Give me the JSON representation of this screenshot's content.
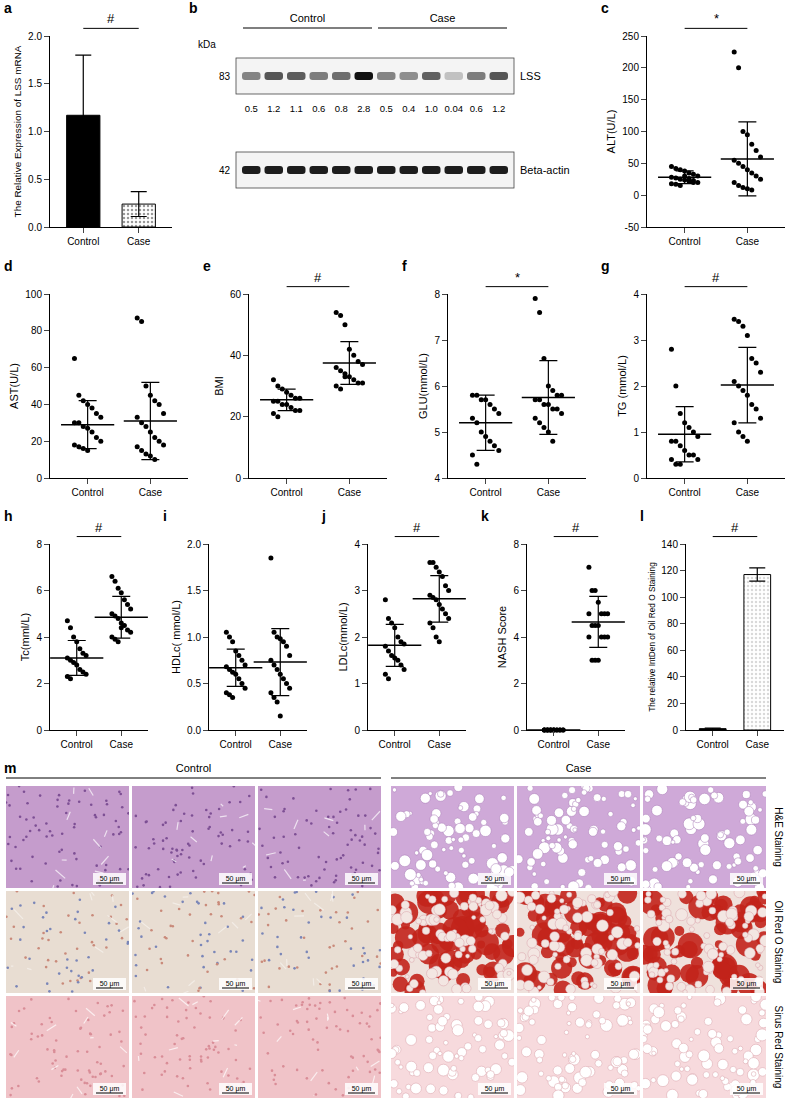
{
  "chart_data": [
    {
      "panel": "a",
      "type": "bar",
      "ylabel": "The Relative Expression of LSS mRNA",
      "categories": [
        "Control",
        "Case"
      ],
      "values": [
        1.17,
        0.24
      ],
      "errors": [
        0.63,
        0.13
      ],
      "colors": [
        "#000000",
        "#999999"
      ],
      "ylim": [
        0,
        2
      ],
      "yticks": [
        {
          "value": 0,
          "label": "0.0"
        },
        {
          "value": 0.5,
          "label": "0.5"
        },
        {
          "value": 1,
          "label": "1.0"
        },
        {
          "value": 1.5,
          "label": "1.5"
        },
        {
          "value": 2,
          "label": "2.0"
        }
      ],
      "significance": "#"
    },
    {
      "panel": "c",
      "type": "scatter",
      "ylabel": "ALT(U/L)",
      "categories": [
        "Control",
        "Case"
      ],
      "groups": [
        {
          "values": [
            45,
            42,
            40,
            38,
            35,
            33,
            30,
            28,
            27,
            25,
            24,
            22,
            20,
            20,
            18,
            17,
            15,
            30,
            26,
            23
          ],
          "mean": 28,
          "sd": 10
        },
        {
          "values": [
            225,
            200,
            100,
            95,
            80,
            70,
            60,
            55,
            50,
            45,
            40,
            35,
            30,
            25,
            20,
            15,
            12,
            10,
            8
          ],
          "mean": 57,
          "sd": 58
        }
      ],
      "ylim": [
        -50,
        250
      ],
      "yticks": [
        -50,
        0,
        50,
        100,
        150,
        200,
        250
      ],
      "significance": "*"
    },
    {
      "panel": "d",
      "type": "scatter",
      "ylabel": "AST(U/L)",
      "categories": [
        "Control",
        "Case"
      ],
      "groups": [
        {
          "values": [
            65,
            45,
            42,
            40,
            38,
            35,
            33,
            30,
            30,
            28,
            27,
            25,
            22,
            20,
            18,
            17,
            16,
            15
          ],
          "mean": 29,
          "sd": 13
        },
        {
          "values": [
            87,
            85,
            50,
            45,
            42,
            40,
            35,
            33,
            30,
            28,
            25,
            22,
            20,
            18,
            17,
            15,
            13,
            12,
            10
          ],
          "mean": 31,
          "sd": 21
        }
      ],
      "ylim": [
        0,
        100
      ],
      "yticks": [
        0,
        20,
        40,
        60,
        80,
        100
      ]
    },
    {
      "panel": "e",
      "type": "scatter",
      "ylabel": "BMI",
      "categories": [
        "Control",
        "Case"
      ],
      "groups": [
        {
          "values": [
            32,
            30,
            29,
            28,
            27,
            26,
            26,
            25,
            25,
            24,
            24,
            23,
            22,
            22,
            21,
            20
          ],
          "mean": 25.5,
          "sd": 3.5
        },
        {
          "values": [
            54,
            53,
            50,
            42,
            40,
            38,
            37,
            36,
            35,
            34,
            33,
            32,
            31,
            31,
            30,
            29,
            33
          ],
          "mean": 37.5,
          "sd": 7
        }
      ],
      "ylim": [
        0,
        60
      ],
      "yticks": [
        0,
        20,
        40,
        60
      ],
      "significance": "#"
    },
    {
      "panel": "f",
      "type": "scatter",
      "ylabel": "GLU(mmol/L)",
      "categories": [
        "Control",
        "Case"
      ],
      "groups": [
        {
          "values": [
            5.8,
            5.8,
            5.7,
            5.7,
            5.6,
            5.5,
            5.4,
            5.3,
            5.2,
            5.0,
            4.9,
            4.8,
            4.7,
            4.6,
            4.5,
            4.3
          ],
          "mean": 5.2,
          "sd": 0.6
        },
        {
          "values": [
            7.9,
            7.6,
            6.6,
            6.0,
            5.9,
            5.8,
            5.8,
            5.7,
            5.7,
            5.6,
            5.6,
            5.5,
            5.5,
            5.4,
            5.3,
            5.2,
            5.1,
            5.0,
            4.8
          ],
          "mean": 5.75,
          "sd": 0.8
        }
      ],
      "ylim": [
        4,
        8
      ],
      "yticks": [
        4,
        5,
        6,
        7,
        8
      ],
      "significance": "*"
    },
    {
      "panel": "g",
      "type": "scatter",
      "ylabel": "TG (mmol/L)",
      "categories": [
        "Control",
        "Case"
      ],
      "groups": [
        {
          "values": [
            2.8,
            2.0,
            1.4,
            1.2,
            1.1,
            1.0,
            0.9,
            0.8,
            0.8,
            0.7,
            0.6,
            0.5,
            0.5,
            0.4,
            0.4,
            0.3,
            0.3
          ],
          "mean": 0.95,
          "sd": 0.6
        },
        {
          "values": [
            3.45,
            3.4,
            3.3,
            3.1,
            2.6,
            2.5,
            2.3,
            2.1,
            2.0,
            1.9,
            1.8,
            1.6,
            1.5,
            1.3,
            1.2,
            1.0,
            0.9,
            0.8
          ],
          "mean": 2.02,
          "sd": 0.82
        }
      ],
      "ylim": [
        0,
        4
      ],
      "yticks": [
        0,
        1,
        2,
        3,
        4
      ],
      "significance": "#"
    },
    {
      "panel": "h",
      "type": "scatter",
      "ylabel": "Tc(mml/L)",
      "categories": [
        "Control",
        "Case"
      ],
      "groups": [
        {
          "values": [
            4.7,
            4.4,
            4.0,
            3.8,
            3.5,
            3.3,
            3.2,
            3.1,
            3.0,
            2.9,
            2.8,
            2.6,
            2.5,
            2.4,
            2.3,
            2.2
          ],
          "mean": 3.1,
          "sd": 0.75
        },
        {
          "values": [
            6.6,
            6.4,
            6.1,
            5.9,
            5.6,
            5.4,
            5.2,
            5.0,
            4.9,
            4.8,
            4.6,
            4.5,
            4.3,
            4.2,
            4.0,
            3.9,
            3.8,
            4.4
          ],
          "mean": 4.85,
          "sd": 0.9
        }
      ],
      "ylim": [
        0,
        8
      ],
      "yticks": [
        0,
        2,
        4,
        6,
        8
      ],
      "significance": "#"
    },
    {
      "panel": "i",
      "type": "scatter",
      "ylabel": "HDLc( mmol/L)",
      "categories": [
        "Control",
        "Case"
      ],
      "groups": [
        {
          "values": [
            1.05,
            1.0,
            0.95,
            0.85,
            0.8,
            0.75,
            0.7,
            0.68,
            0.65,
            0.62,
            0.6,
            0.55,
            0.5,
            0.45,
            0.4,
            0.38,
            0.35
          ],
          "mean": 0.67,
          "sd": 0.2
        },
        {
          "values": [
            1.85,
            1.05,
            1.0,
            0.98,
            0.95,
            0.9,
            0.8,
            0.75,
            0.7,
            0.65,
            0.6,
            0.55,
            0.5,
            0.45,
            0.4,
            0.35,
            0.3,
            0.15
          ],
          "mean": 0.73,
          "sd": 0.36
        }
      ],
      "ylim": [
        0,
        2
      ],
      "yticks": [
        {
          "value": 0,
          "label": "0.0"
        },
        {
          "value": 0.5,
          "label": "0.5"
        },
        {
          "value": 1,
          "label": "1.0"
        },
        {
          "value": 1.5,
          "label": "1.5"
        },
        {
          "value": 2,
          "label": "2.0"
        }
      ]
    },
    {
      "panel": "j",
      "type": "scatter",
      "ylabel": "LDLc(mmol/L)",
      "categories": [
        "Control",
        "Case"
      ],
      "groups": [
        {
          "values": [
            2.8,
            2.4,
            2.3,
            2.2,
            2.0,
            1.9,
            1.85,
            1.8,
            1.7,
            1.6,
            1.55,
            1.5,
            1.4,
            1.3,
            1.2,
            1.1
          ],
          "mean": 1.82,
          "sd": 0.45
        },
        {
          "values": [
            3.6,
            3.6,
            3.5,
            3.4,
            3.3,
            3.1,
            3.0,
            2.9,
            2.85,
            2.8,
            2.7,
            2.6,
            2.5,
            2.4,
            2.3,
            2.2,
            2.0,
            1.9
          ],
          "mean": 2.82,
          "sd": 0.5
        }
      ],
      "ylim": [
        0,
        4
      ],
      "yticks": [
        0,
        1,
        2,
        3,
        4
      ],
      "significance": "#"
    },
    {
      "panel": "k",
      "type": "scatter",
      "ylabel": "NASH Score",
      "categories": [
        "Control",
        "Case"
      ],
      "groups": [
        {
          "values": [
            0,
            0,
            0,
            0,
            0,
            0,
            0,
            0,
            0,
            0,
            0,
            0,
            0,
            0,
            0,
            0,
            0,
            0
          ],
          "mean": 0,
          "sd": 0
        },
        {
          "values": [
            7,
            6,
            6,
            5.5,
            5,
            5,
            5,
            5,
            4.5,
            4.5,
            4.5,
            4,
            4,
            4,
            4,
            3,
            3,
            3
          ],
          "mean": 4.65,
          "sd": 1.1
        }
      ],
      "ylim": [
        0,
        8
      ],
      "yticks": [
        0,
        2,
        4,
        6,
        8
      ],
      "significance": "#"
    },
    {
      "panel": "l",
      "type": "bar",
      "ylabel": "The relative IntDen of Oil Red O Staining",
      "categories": [
        "Control",
        "Case"
      ],
      "values": [
        1,
        117
      ],
      "errors": [
        0.5,
        5
      ],
      "colors": [
        "#000000",
        "#d9d9d9"
      ],
      "ylim": [
        0,
        140
      ],
      "yticks": [
        0,
        20,
        40,
        60,
        80,
        100,
        120,
        140
      ],
      "significance": "#"
    }
  ],
  "blot": {
    "panel": "b",
    "unit": "kDa",
    "groups": [
      "Control",
      "Case"
    ],
    "bands": [
      {
        "name": "LSS",
        "kda": 83,
        "values": [
          0.5,
          1.2,
          1.1,
          0.6,
          0.8,
          2.8,
          0.5,
          0.4,
          1,
          0.04,
          0.6,
          1.2
        ],
        "value_labels": [
          "0.5",
          "1.2",
          "1.1",
          "0.6",
          "0.8",
          "2.8",
          "0.5",
          "0.4",
          "1.0",
          "0.04",
          "0.6",
          "1.2"
        ]
      },
      {
        "name": "Beta-actin",
        "kda": 42
      }
    ]
  },
  "histology": {
    "panel": "m",
    "groups": [
      "Control",
      "Case"
    ],
    "images_per_group": 3,
    "stains": [
      "H&E Staining",
      "Oil Red O Staining",
      "Sirus Red Staining"
    ],
    "scale_bar": "50 μm"
  }
}
